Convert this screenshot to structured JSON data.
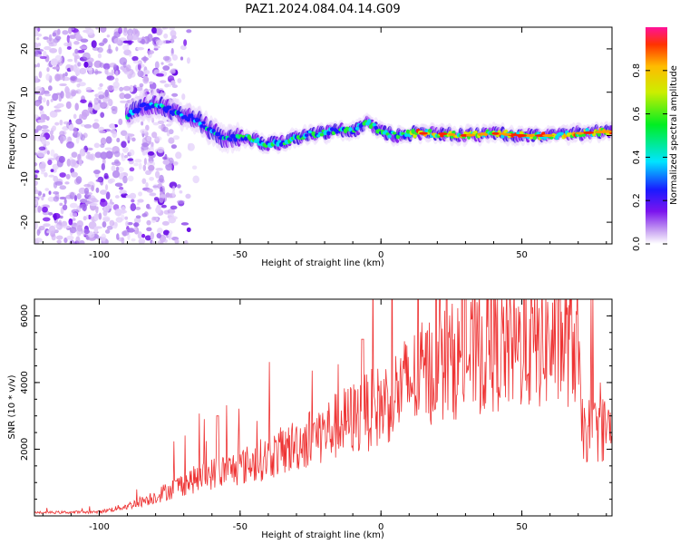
{
  "title": "PAZ1.2024.084.04.14.G09",
  "chart_data": [
    {
      "type": "heatmap",
      "xlabel": "Height of straight line (km)",
      "ylabel": "Frequency (Hz)",
      "xlim": [
        -123,
        82
      ],
      "ylim": [
        -25,
        25
      ],
      "xticks": [
        "-100",
        "-50",
        "0",
        "50"
      ],
      "yticks": [
        "20",
        "10",
        "0",
        "-10",
        "-20"
      ],
      "colorbar": {
        "label": "Normalized spectral amplitude",
        "range": [
          0.0,
          1.0
        ],
        "ticks": [
          "0.0",
          "0.2",
          "0.4",
          "0.6",
          "0.8"
        ]
      },
      "ridge": {
        "x": [
          -90,
          -85,
          -80,
          -75,
          -70,
          -65,
          -60,
          -55,
          -50,
          -45,
          -40,
          -35,
          -30,
          -25,
          -20,
          -15,
          -10,
          -5,
          0,
          5,
          10,
          20,
          30,
          40,
          50,
          60,
          70,
          82
        ],
        "y": [
          4.5,
          6.5,
          7.2,
          6,
          4.5,
          3.5,
          1,
          -1,
          0,
          -1,
          -2,
          -1.5,
          -0.5,
          0.5,
          0.5,
          1.5,
          1,
          3,
          1,
          0,
          0.5,
          0.5,
          0,
          0.5,
          0,
          0,
          0.5,
          1
        ]
      }
    },
    {
      "type": "line",
      "xlabel": "Height of straight line (km)",
      "ylabel": "SNR (10 * v/v)",
      "xlim": [
        -123,
        82
      ],
      "ylim": [
        0,
        6500
      ],
      "xticks": [
        "-100",
        "-50",
        "0",
        "50"
      ],
      "yticks": [
        "6000",
        "4000",
        "2000"
      ],
      "color": "#ee3333",
      "envelope": {
        "x": [
          -123,
          -100,
          -90,
          -80,
          -70,
          -60,
          -50,
          -40,
          -30,
          -20,
          -10,
          0,
          10,
          20,
          30,
          40,
          50,
          60,
          70,
          71,
          82
        ],
        "y": [
          100,
          120,
          300,
          600,
          1000,
          1300,
          1500,
          1800,
          2200,
          2600,
          3000,
          3400,
          4100,
          4600,
          4900,
          5100,
          5200,
          5300,
          5400,
          2600,
          2700
        ]
      }
    }
  ]
}
